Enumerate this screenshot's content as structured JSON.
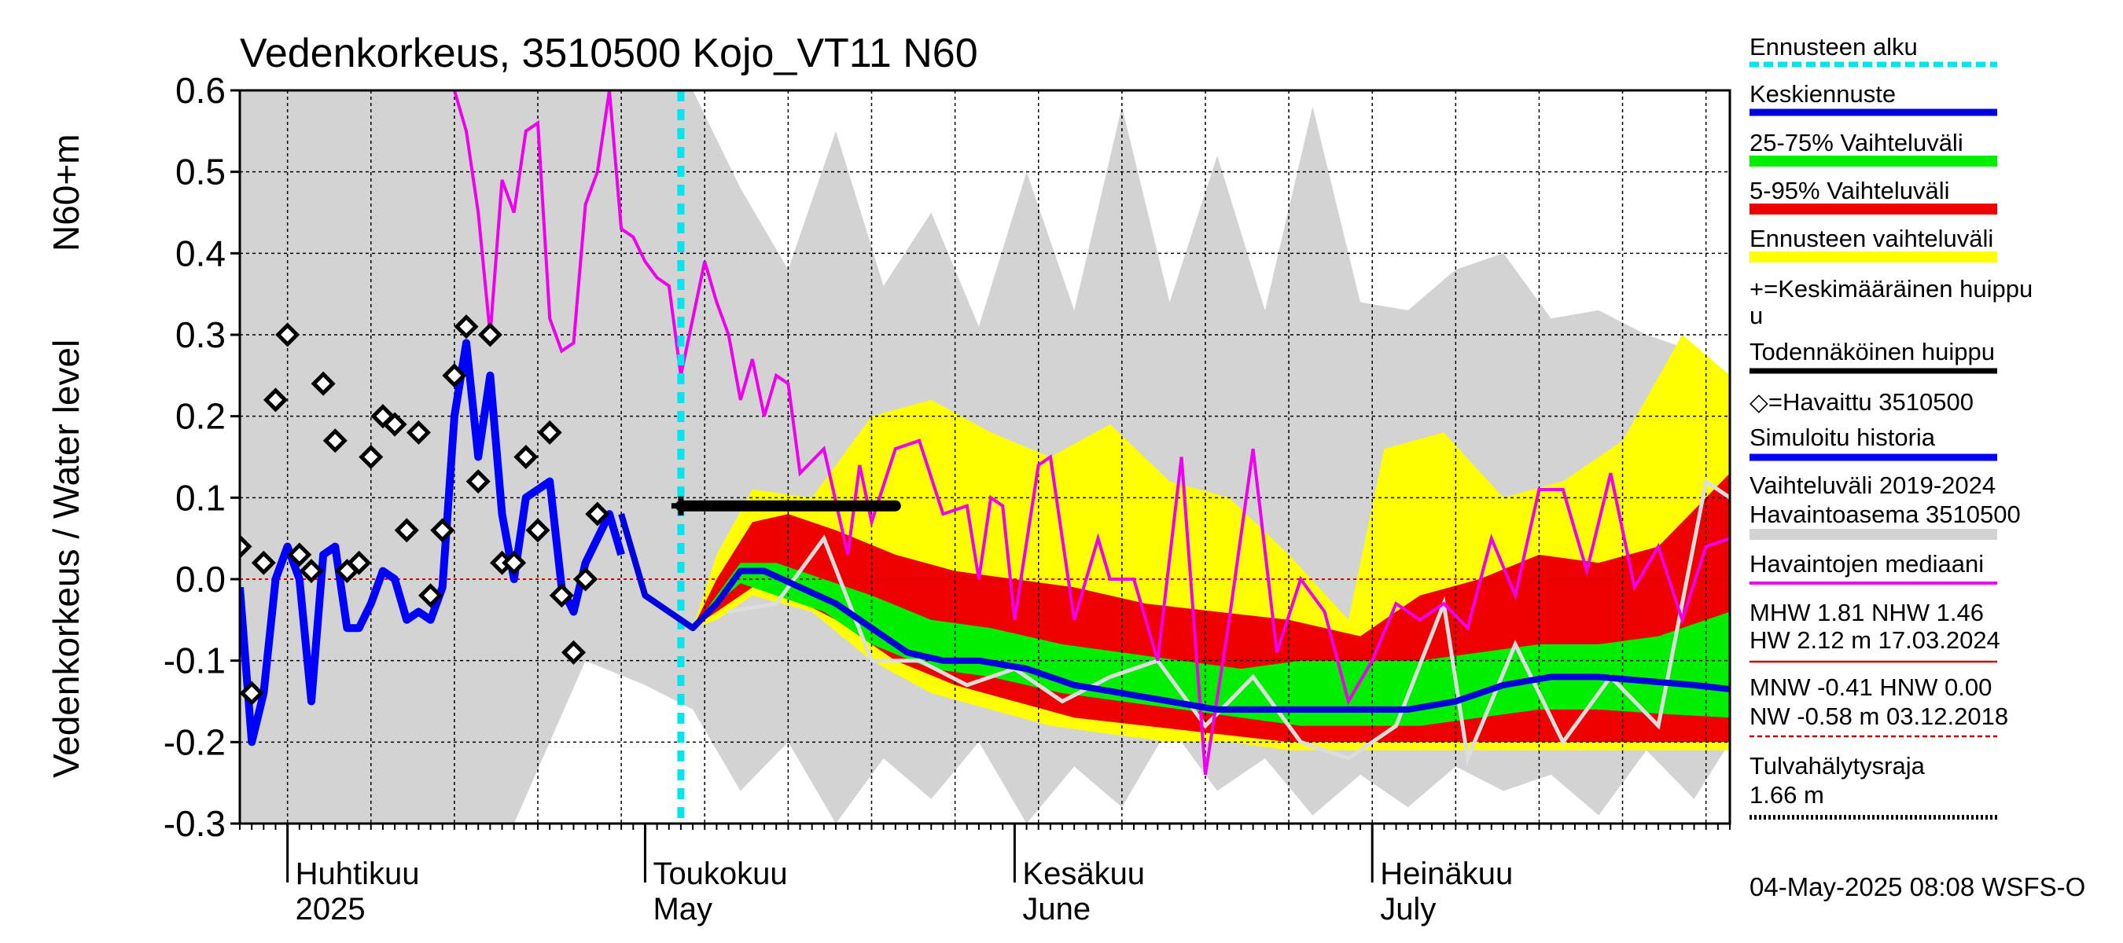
{
  "chart_data": {
    "type": "line",
    "title": "Vedenkorkeus, 3510500 Kojo_VT11 N60",
    "ylabel_1": "N60+m",
    "ylabel_2": "Vedenkorkeus / Water level",
    "ylim": [
      -0.3,
      0.6
    ],
    "y_ticks": [
      "0.6",
      "0.5",
      "0.4",
      "0.3",
      "0.2",
      "0.1",
      "0.0",
      "-0.1",
      "-0.2",
      "-0.3"
    ],
    "x_range": [
      "2025-03-28",
      "2025-07-31"
    ],
    "month_labels": [
      {
        "fi": "Huhtikuu",
        "en": "2025",
        "date": "2025-04-01"
      },
      {
        "fi": "Toukokuu",
        "en": "May",
        "date": "2025-05-01"
      },
      {
        "fi": "Kesäkuu",
        "en": "June",
        "date": "2025-06-01"
      },
      {
        "fi": "Heinäkuu",
        "en": "July",
        "date": "2025-07-01"
      }
    ],
    "forecast_start": "2025-05-04",
    "grid": true,
    "legend_placement": "right",
    "colors": {
      "forecast_start": "#00e5ee",
      "mean_forecast": "#0000dd",
      "band_25_75": "#00ee00",
      "band_5_95": "#ee0000",
      "forecast_range": "#ffff00",
      "history_range": "#d3d3d3",
      "median": "#ee00ee",
      "simulated": "#0000ff",
      "peak": "#000000",
      "history_median_line": "#dddddd"
    },
    "observed": [
      [
        "2025-03-28",
        0.04
      ],
      [
        "2025-03-29",
        -0.14
      ],
      [
        "2025-03-30",
        0.02
      ],
      [
        "2025-03-31",
        0.22
      ],
      [
        "2025-04-01",
        0.3
      ],
      [
        "2025-04-02",
        0.03
      ],
      [
        "2025-04-03",
        0.01
      ],
      [
        "2025-04-04",
        0.24
      ],
      [
        "2025-04-05",
        0.17
      ],
      [
        "2025-04-06",
        0.01
      ],
      [
        "2025-04-07",
        0.02
      ],
      [
        "2025-04-08",
        0.15
      ],
      [
        "2025-04-09",
        0.2
      ],
      [
        "2025-04-10",
        0.19
      ],
      [
        "2025-04-11",
        0.06
      ],
      [
        "2025-04-12",
        0.18
      ],
      [
        "2025-04-13",
        -0.02
      ],
      [
        "2025-04-14",
        0.06
      ],
      [
        "2025-04-15",
        0.25
      ],
      [
        "2025-04-16",
        0.31
      ],
      [
        "2025-04-17",
        0.12
      ],
      [
        "2025-04-18",
        0.3
      ],
      [
        "2025-04-19",
        0.02
      ],
      [
        "2025-04-20",
        0.02
      ],
      [
        "2025-04-21",
        0.15
      ],
      [
        "2025-04-22",
        0.06
      ],
      [
        "2025-04-23",
        0.18
      ],
      [
        "2025-04-24",
        -0.02
      ],
      [
        "2025-04-25",
        -0.09
      ],
      [
        "2025-04-26",
        0.0
      ],
      [
        "2025-04-27",
        0.08
      ]
    ],
    "simulated_history": [
      [
        "2025-03-28",
        -0.01
      ],
      [
        "2025-03-29",
        -0.2
      ],
      [
        "2025-03-30",
        -0.14
      ],
      [
        "2025-03-31",
        0.0
      ],
      [
        "2025-04-01",
        0.04
      ],
      [
        "2025-04-02",
        0.0
      ],
      [
        "2025-04-03",
        -0.15
      ],
      [
        "2025-04-04",
        0.03
      ],
      [
        "2025-04-05",
        0.04
      ],
      [
        "2025-04-06",
        -0.06
      ],
      [
        "2025-04-07",
        -0.06
      ],
      [
        "2025-04-08",
        -0.03
      ],
      [
        "2025-04-09",
        0.01
      ],
      [
        "2025-04-10",
        0.0
      ],
      [
        "2025-04-11",
        -0.05
      ],
      [
        "2025-04-12",
        -0.04
      ],
      [
        "2025-04-13",
        -0.05
      ],
      [
        "2025-04-14",
        -0.01
      ],
      [
        "2025-04-15",
        0.2
      ],
      [
        "2025-04-16",
        0.29
      ],
      [
        "2025-04-17",
        0.15
      ],
      [
        "2025-04-18",
        0.25
      ],
      [
        "2025-04-19",
        0.08
      ],
      [
        "2025-04-20",
        0.0
      ],
      [
        "2025-04-21",
        0.1
      ],
      [
        "2025-04-22",
        0.11
      ],
      [
        "2025-04-23",
        0.12
      ],
      [
        "2025-04-24",
        -0.01
      ],
      [
        "2025-04-25",
        -0.04
      ],
      [
        "2025-04-26",
        0.02
      ],
      [
        "2025-04-27",
        0.05
      ],
      [
        "2025-04-28",
        0.08
      ],
      [
        "2025-04-29",
        0.03
      ]
    ],
    "mean_forecast": [
      [
        "2025-04-29",
        0.08
      ],
      [
        "2025-05-01",
        -0.02
      ],
      [
        "2025-05-03",
        -0.04
      ],
      [
        "2025-05-05",
        -0.06
      ],
      [
        "2025-05-07",
        -0.03
      ],
      [
        "2025-05-09",
        0.01
      ],
      [
        "2025-05-11",
        0.01
      ],
      [
        "2025-05-14",
        -0.01
      ],
      [
        "2025-05-17",
        -0.03
      ],
      [
        "2025-05-20",
        -0.06
      ],
      [
        "2025-05-23",
        -0.09
      ],
      [
        "2025-05-26",
        -0.1
      ],
      [
        "2025-05-29",
        -0.1
      ],
      [
        "2025-06-02",
        -0.11
      ],
      [
        "2025-06-06",
        -0.13
      ],
      [
        "2025-06-10",
        -0.14
      ],
      [
        "2025-06-14",
        -0.15
      ],
      [
        "2025-06-18",
        -0.16
      ],
      [
        "2025-06-22",
        -0.16
      ],
      [
        "2025-06-26",
        -0.16
      ],
      [
        "2025-06-30",
        -0.16
      ],
      [
        "2025-07-04",
        -0.16
      ],
      [
        "2025-07-08",
        -0.15
      ],
      [
        "2025-07-12",
        -0.13
      ],
      [
        "2025-07-16",
        -0.12
      ],
      [
        "2025-07-20",
        -0.12
      ],
      [
        "2025-07-24",
        -0.125
      ],
      [
        "2025-07-28",
        -0.13
      ],
      [
        "2025-07-31",
        -0.135
      ]
    ],
    "band_25_75": [
      [
        "2025-05-05",
        -0.06,
        -0.06
      ],
      [
        "2025-05-07",
        -0.03,
        -0.02
      ],
      [
        "2025-05-09",
        -0.005,
        0.02
      ],
      [
        "2025-05-12",
        -0.02,
        0.02
      ],
      [
        "2025-05-16",
        -0.04,
        0.0
      ],
      [
        "2025-05-20",
        -0.08,
        -0.02
      ],
      [
        "2025-05-25",
        -0.11,
        -0.05
      ],
      [
        "2025-05-30",
        -0.12,
        -0.06
      ],
      [
        "2025-06-05",
        -0.14,
        -0.08
      ],
      [
        "2025-06-10",
        -0.15,
        -0.09
      ],
      [
        "2025-06-15",
        -0.16,
        -0.1
      ],
      [
        "2025-06-20",
        -0.17,
        -0.11
      ],
      [
        "2025-06-25",
        -0.18,
        -0.1
      ],
      [
        "2025-06-30",
        -0.18,
        -0.1
      ],
      [
        "2025-07-05",
        -0.18,
        -0.1
      ],
      [
        "2025-07-10",
        -0.17,
        -0.09
      ],
      [
        "2025-07-15",
        -0.16,
        -0.08
      ],
      [
        "2025-07-20",
        -0.16,
        -0.08
      ],
      [
        "2025-07-25",
        -0.165,
        -0.07
      ],
      [
        "2025-07-31",
        -0.17,
        -0.04
      ]
    ],
    "band_5_95": [
      [
        "2025-05-05",
        -0.06,
        -0.06
      ],
      [
        "2025-05-07",
        -0.04,
        0.0
      ],
      [
        "2025-05-10",
        -0.01,
        0.07
      ],
      [
        "2025-05-13",
        -0.02,
        0.08
      ],
      [
        "2025-05-17",
        -0.05,
        0.06
      ],
      [
        "2025-05-22",
        -0.1,
        0.03
      ],
      [
        "2025-05-27",
        -0.13,
        0.01
      ],
      [
        "2025-06-01",
        -0.15,
        0.0
      ],
      [
        "2025-06-06",
        -0.17,
        -0.01
      ],
      [
        "2025-06-12",
        -0.18,
        -0.03
      ],
      [
        "2025-06-18",
        -0.19,
        -0.04
      ],
      [
        "2025-06-24",
        -0.2,
        -0.05
      ],
      [
        "2025-06-30",
        -0.2,
        -0.07
      ],
      [
        "2025-07-05",
        -0.2,
        -0.02
      ],
      [
        "2025-07-10",
        -0.2,
        0.0
      ],
      [
        "2025-07-15",
        -0.2,
        0.03
      ],
      [
        "2025-07-20",
        -0.2,
        0.02
      ],
      [
        "2025-07-25",
        -0.2,
        0.04
      ],
      [
        "2025-07-31",
        -0.2,
        0.13
      ]
    ],
    "forecast_range": [
      [
        "2025-05-05",
        -0.06,
        -0.06
      ],
      [
        "2025-05-07",
        -0.05,
        0.03
      ],
      [
        "2025-05-10",
        -0.02,
        0.11
      ],
      [
        "2025-05-15",
        -0.04,
        0.1
      ],
      [
        "2025-05-20",
        -0.1,
        0.2
      ],
      [
        "2025-05-25",
        -0.14,
        0.22
      ],
      [
        "2025-05-30",
        -0.16,
        0.18
      ],
      [
        "2025-06-04",
        -0.18,
        0.15
      ],
      [
        "2025-06-09",
        -0.19,
        0.19
      ],
      [
        "2025-06-14",
        -0.2,
        0.12
      ],
      [
        "2025-06-19",
        -0.2,
        0.1
      ],
      [
        "2025-06-24",
        -0.21,
        0.03
      ],
      [
        "2025-06-29",
        -0.21,
        -0.05
      ],
      [
        "2025-07-02",
        -0.21,
        0.16
      ],
      [
        "2025-07-07",
        -0.21,
        0.18
      ],
      [
        "2025-07-12",
        -0.21,
        0.1
      ],
      [
        "2025-07-17",
        -0.21,
        0.12
      ],
      [
        "2025-07-22",
        -0.21,
        0.17
      ],
      [
        "2025-07-27",
        -0.21,
        0.3
      ],
      [
        "2025-07-31",
        -0.21,
        0.25
      ]
    ],
    "history_range": [
      [
        "2025-03-28",
        -0.3,
        0.6
      ],
      [
        "2025-04-01",
        -0.3,
        0.6
      ],
      [
        "2025-04-08",
        -0.3,
        0.6
      ],
      [
        "2025-04-14",
        -0.3,
        0.6
      ],
      [
        "2025-04-20",
        -0.3,
        0.6
      ],
      [
        "2025-04-26",
        -0.1,
        0.6
      ],
      [
        "2025-05-01",
        -0.13,
        0.6
      ],
      [
        "2025-05-05",
        -0.16,
        0.6
      ],
      [
        "2025-05-09",
        -0.26,
        0.48
      ],
      [
        "2025-05-13",
        -0.2,
        0.38
      ],
      [
        "2025-05-17",
        -0.3,
        0.55
      ],
      [
        "2025-05-21",
        -0.22,
        0.36
      ],
      [
        "2025-05-25",
        -0.27,
        0.45
      ],
      [
        "2025-05-29",
        -0.2,
        0.31
      ],
      [
        "2025-06-02",
        -0.3,
        0.5
      ],
      [
        "2025-06-06",
        -0.23,
        0.33
      ],
      [
        "2025-06-10",
        -0.28,
        0.58
      ],
      [
        "2025-06-14",
        -0.18,
        0.34
      ],
      [
        "2025-06-18",
        -0.26,
        0.52
      ],
      [
        "2025-06-22",
        -0.22,
        0.33
      ],
      [
        "2025-06-26",
        -0.29,
        0.58
      ],
      [
        "2025-06-30",
        -0.24,
        0.34
      ],
      [
        "2025-07-04",
        -0.28,
        0.33
      ],
      [
        "2025-07-08",
        -0.23,
        0.38
      ],
      [
        "2025-07-12",
        -0.26,
        0.4
      ],
      [
        "2025-07-16",
        -0.24,
        0.32
      ],
      [
        "2025-07-20",
        -0.29,
        0.33
      ],
      [
        "2025-07-24",
        -0.21,
        0.3
      ],
      [
        "2025-07-28",
        -0.27,
        0.28
      ],
      [
        "2025-07-31",
        -0.2,
        0.2
      ]
    ],
    "median": [
      [
        "2025-04-15",
        0.6
      ],
      [
        "2025-04-16",
        0.55
      ],
      [
        "2025-04-17",
        0.45
      ],
      [
        "2025-04-18",
        0.3
      ],
      [
        "2025-04-19",
        0.49
      ],
      [
        "2025-04-20",
        0.45
      ],
      [
        "2025-04-21",
        0.55
      ],
      [
        "2025-04-22",
        0.56
      ],
      [
        "2025-04-23",
        0.32
      ],
      [
        "2025-04-24",
        0.28
      ],
      [
        "2025-04-25",
        0.29
      ],
      [
        "2025-04-26",
        0.46
      ],
      [
        "2025-04-27",
        0.5
      ],
      [
        "2025-04-28",
        0.6
      ],
      [
        "2025-04-29",
        0.43
      ],
      [
        "2025-04-30",
        0.42
      ],
      [
        "2025-05-01",
        0.39
      ],
      [
        "2025-05-02",
        0.37
      ],
      [
        "2025-05-03",
        0.36
      ],
      [
        "2025-05-04",
        0.25
      ],
      [
        "2025-05-05",
        0.32
      ],
      [
        "2025-05-06",
        0.39
      ],
      [
        "2025-05-07",
        0.34
      ],
      [
        "2025-05-08",
        0.3
      ],
      [
        "2025-05-09",
        0.22
      ],
      [
        "2025-05-10",
        0.27
      ],
      [
        "2025-05-11",
        0.2
      ],
      [
        "2025-05-12",
        0.25
      ],
      [
        "2025-05-13",
        0.24
      ],
      [
        "2025-05-14",
        0.13
      ],
      [
        "2025-05-16",
        0.16
      ],
      [
        "2025-05-18",
        0.03
      ],
      [
        "2025-05-19",
        0.14
      ],
      [
        "2025-05-20",
        0.07
      ],
      [
        "2025-05-22",
        0.16
      ],
      [
        "2025-05-24",
        0.17
      ],
      [
        "2025-05-26",
        0.08
      ],
      [
        "2025-05-28",
        0.09
      ],
      [
        "2025-05-29",
        0.0
      ],
      [
        "2025-05-30",
        0.1
      ],
      [
        "2025-05-31",
        0.09
      ],
      [
        "2025-06-01",
        -0.05
      ],
      [
        "2025-06-03",
        0.14
      ],
      [
        "2025-06-04",
        0.15
      ],
      [
        "2025-06-05",
        0.05
      ],
      [
        "2025-06-06",
        -0.05
      ],
      [
        "2025-06-08",
        0.05
      ],
      [
        "2025-06-09",
        0.0
      ],
      [
        "2025-06-11",
        0.0
      ],
      [
        "2025-06-13",
        -0.1
      ],
      [
        "2025-06-15",
        0.15
      ],
      [
        "2025-06-17",
        -0.24
      ],
      [
        "2025-06-19",
        -0.05
      ],
      [
        "2025-06-21",
        0.16
      ],
      [
        "2025-06-23",
        -0.09
      ],
      [
        "2025-06-25",
        0.0
      ],
      [
        "2025-06-27",
        -0.04
      ],
      [
        "2025-06-29",
        -0.15
      ],
      [
        "2025-07-01",
        -0.1
      ],
      [
        "2025-07-03",
        -0.03
      ],
      [
        "2025-07-05",
        -0.05
      ],
      [
        "2025-07-07",
        -0.03
      ],
      [
        "2025-07-09",
        -0.06
      ],
      [
        "2025-07-11",
        0.05
      ],
      [
        "2025-07-13",
        -0.02
      ],
      [
        "2025-07-15",
        0.11
      ],
      [
        "2025-07-17",
        0.11
      ],
      [
        "2025-07-19",
        0.01
      ],
      [
        "2025-07-21",
        0.13
      ],
      [
        "2025-07-23",
        -0.01
      ],
      [
        "2025-07-25",
        0.04
      ],
      [
        "2025-07-27",
        -0.05
      ],
      [
        "2025-07-29",
        0.04
      ],
      [
        "2025-07-31",
        0.05
      ]
    ],
    "history_median_line": [
      [
        "2025-05-08",
        -0.04
      ],
      [
        "2025-05-12",
        -0.03
      ],
      [
        "2025-05-16",
        0.05
      ],
      [
        "2025-05-20",
        -0.1
      ],
      [
        "2025-05-24",
        -0.1
      ],
      [
        "2025-05-28",
        -0.13
      ],
      [
        "2025-06-01",
        -0.11
      ],
      [
        "2025-06-05",
        -0.15
      ],
      [
        "2025-06-09",
        -0.12
      ],
      [
        "2025-06-13",
        -0.1
      ],
      [
        "2025-06-17",
        -0.18
      ],
      [
        "2025-06-21",
        -0.12
      ],
      [
        "2025-06-25",
        -0.2
      ],
      [
        "2025-06-29",
        -0.22
      ],
      [
        "2025-07-03",
        -0.18
      ],
      [
        "2025-07-07",
        -0.03
      ],
      [
        "2025-07-09",
        -0.22
      ],
      [
        "2025-07-13",
        -0.08
      ],
      [
        "2025-07-17",
        -0.2
      ],
      [
        "2025-07-21",
        -0.12
      ],
      [
        "2025-07-25",
        -0.18
      ],
      [
        "2025-07-29",
        0.12
      ],
      [
        "2025-07-31",
        0.1
      ]
    ],
    "mean_peak": {
      "start": "2025-05-04",
      "end": "2025-05-22",
      "value": 0.09
    },
    "legend": [
      "Ennusteen alku",
      "Keskiennuste",
      "25-75% Vaihteluväli",
      "5-95% Vaihteluväli",
      "Ennusteen vaihteluväli",
      "+=Keskimääräinen huippu",
      "Todennäköinen huippu",
      "◇=Havaittu 3510500",
      "Simuloitu historia",
      "Vaihteluväli 2019-2024",
      " Havaintoasema 3510500",
      "Havaintojen mediaani",
      "MHW   1.81 NHW   1.46",
      "HW   2.12 m 17.03.2024",
      "MNW  -0.41 HNW   0.00",
      "NW  -0.58 m 03.12.2018",
      "Tulvahälytysraja",
      " 1.66 m"
    ],
    "footer": "04-May-2025 08:08 WSFS-O"
  }
}
